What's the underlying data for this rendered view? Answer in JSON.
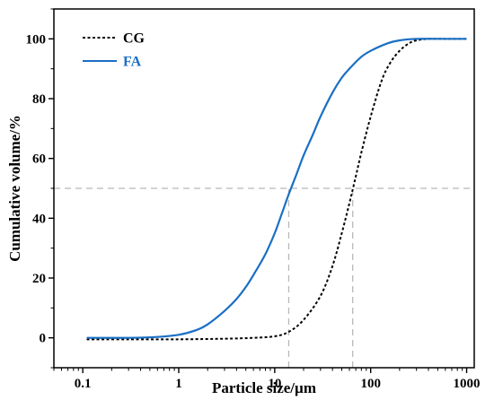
{
  "chart_data": {
    "type": "line",
    "title": "",
    "xlabel": "Particle size/µm",
    "ylabel": "Cumulative volume/%",
    "xscale": "log",
    "xlim": [
      0.05,
      1200
    ],
    "ylim": [
      -10,
      110
    ],
    "xticks": [
      {
        "value": 0.1,
        "label": "0.1"
      },
      {
        "value": 1,
        "label": "1"
      },
      {
        "value": 10,
        "label": "10"
      },
      {
        "value": 100,
        "label": "100"
      },
      {
        "value": 1000,
        "label": "1000"
      }
    ],
    "yticks": [
      {
        "value": 0,
        "label": "0"
      },
      {
        "value": 20,
        "label": "20"
      },
      {
        "value": 40,
        "label": "40"
      },
      {
        "value": 60,
        "label": "60"
      },
      {
        "value": 80,
        "label": "80"
      },
      {
        "value": 100,
        "label": "100"
      }
    ],
    "legend_position": "top-left",
    "grid": false,
    "series": [
      {
        "name": "CG",
        "color": "#000000",
        "style": "dotted",
        "x": [
          0.11,
          0.3,
          1,
          3,
          6,
          10,
          14,
          20,
          30,
          40,
          50,
          60,
          70,
          80,
          100,
          130,
          160,
          200,
          250,
          300,
          400,
          600,
          1000
        ],
        "y": [
          -0.5,
          -0.5,
          -0.5,
          -0.3,
          0,
          0.5,
          2,
          6,
          14,
          24,
          35,
          45,
          54,
          62,
          74,
          86,
          92,
          96,
          98.5,
          99.5,
          100,
          100,
          100
        ]
      },
      {
        "name": "FA",
        "color": "#1a6fc4",
        "style": "solid",
        "x": [
          0.11,
          0.3,
          0.6,
          1,
          1.5,
          2,
          3,
          4,
          5,
          6,
          8,
          10,
          12,
          14,
          17,
          20,
          25,
          30,
          40,
          50,
          60,
          80,
          100,
          150,
          200,
          300,
          500,
          1000
        ],
        "y": [
          0,
          0,
          0.3,
          1,
          2.5,
          4.5,
          9,
          13,
          17,
          21,
          28,
          35,
          42,
          48,
          55,
          61,
          68,
          74,
          82,
          87,
          90,
          94,
          96,
          98.5,
          99.5,
          100,
          100,
          100
        ]
      }
    ],
    "reference_lines": [
      {
        "type": "horizontal",
        "y": 50,
        "color": "#b8b8b8",
        "style": "dashed"
      },
      {
        "type": "vertical",
        "x": 14,
        "y_to": 50,
        "color": "#b8b8b8",
        "style": "dashed"
      },
      {
        "type": "vertical",
        "x": 65,
        "y_to": 50,
        "color": "#b8b8b8",
        "style": "dashed"
      }
    ]
  }
}
